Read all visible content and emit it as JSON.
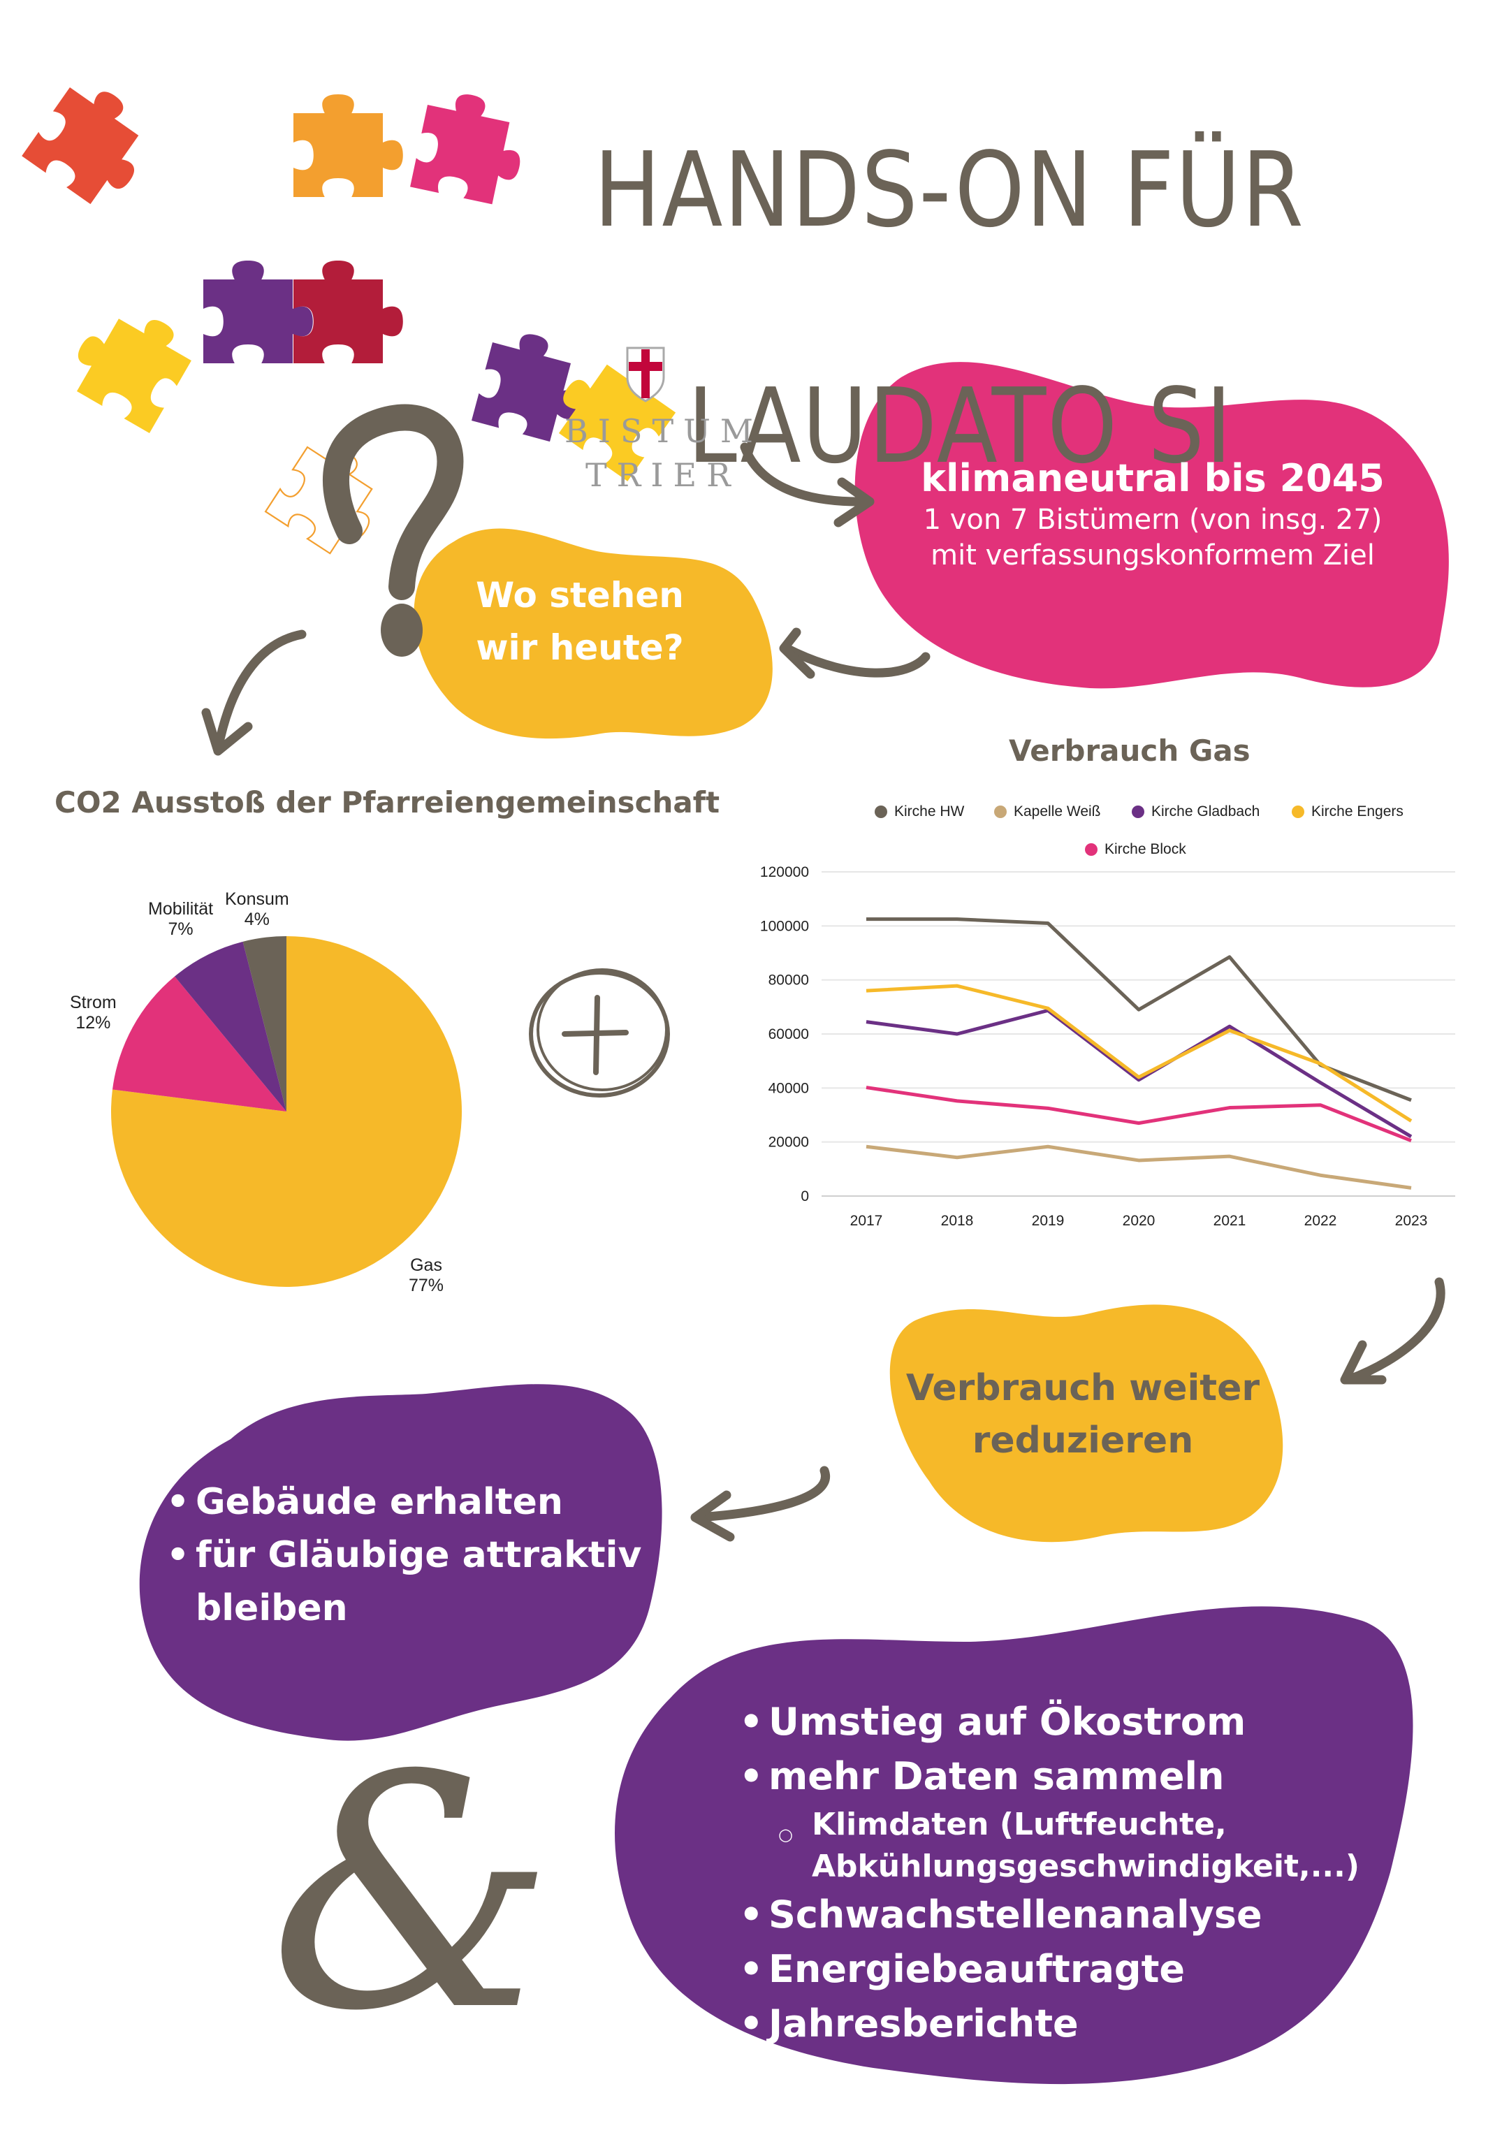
{
  "header": {
    "title_line1": "HANDS-ON FÜR",
    "title_line2": "LAUDATO SI"
  },
  "logo": {
    "line1": "BISTUM",
    "line2": "TRIER"
  },
  "colors": {
    "text_brown": "#6b6357",
    "pink": "#e2327a",
    "yellow": "#f6b929",
    "purple": "#6b3085",
    "orange_red": "#e64d36",
    "orange": "#f39f2f",
    "crimson": "#b31d3a",
    "puzzle_yellow": "#fbcb23",
    "tan": "#c8a877",
    "logo_red": "#c2063b",
    "logo_grey": "#9a9a9a"
  },
  "goal_blob": {
    "headline": "klimaneutral bis 2045",
    "line2": "1 von 7 Bistümern (von insg. 27)",
    "line3": "mit verfassungskonformem Ziel"
  },
  "question_blob": {
    "line1": "Wo stehen",
    "line2": "wir heute?"
  },
  "reduce_blob": {
    "line1": "Verbrauch weiter",
    "line2": "reduzieren"
  },
  "goals_blob": {
    "items": [
      "Gebäude erhalten",
      "für Gläubige attraktiv",
      "bleiben"
    ]
  },
  "measures_blob": {
    "items": [
      {
        "text": "Umstieg auf Ökostrom",
        "level": 1
      },
      {
        "text": "mehr Daten sammeln",
        "level": 1
      },
      {
        "text": "Klimdaten (Luftfeuchte,",
        "level": 2
      },
      {
        "text": "Abkühlungsgeschwindigkeit,...)",
        "level": 2
      },
      {
        "text": "Schwachstellenanalyse",
        "level": 1
      },
      {
        "text": "Energiebeauftragte",
        "level": 1
      },
      {
        "text": "Jahresberichte",
        "level": 1
      }
    ]
  },
  "icons": {
    "question_mark": "question-mark-icon",
    "plus_circle": "plus-circle-icon",
    "ampersand": "ampersand-icon",
    "arrows": [
      "brush-arrow-icon"
    ],
    "puzzle": "puzzle-piece-icon",
    "shield": "shield-cross-icon"
  },
  "chart_data": [
    {
      "type": "pie",
      "title": "CO2 Ausstoß der Pfarreiengemeinschaft",
      "categories": [
        "Gas",
        "Strom",
        "Mobilität",
        "Konsum"
      ],
      "values": [
        77,
        12,
        7,
        4
      ],
      "labels": [
        "77%",
        "12%",
        "7%",
        "4%"
      ],
      "colors": [
        "#f6b929",
        "#e2327a",
        "#6b3085",
        "#6b6357"
      ],
      "legend": "none (inline labels)"
    },
    {
      "type": "line",
      "title": "Verbrauch Gas",
      "x": [
        "2017",
        "2018",
        "2019",
        "2020",
        "2021",
        "2022",
        "2023"
      ],
      "series": [
        {
          "name": "Kirche HW",
          "color": "#6b6357",
          "values": [
            102500,
            102500,
            101000,
            69000,
            88500,
            48500,
            35500
          ]
        },
        {
          "name": "Kapelle Weiß",
          "color": "#c8a877",
          "values": [
            18300,
            14300,
            18300,
            13200,
            14700,
            7700,
            3000
          ]
        },
        {
          "name": "Kirche Gladbach",
          "color": "#6b3085",
          "values": [
            64500,
            60000,
            68700,
            43000,
            62800,
            42000,
            22000
          ]
        },
        {
          "name": "Kirche Engers",
          "color": "#f6b929",
          "values": [
            76000,
            77800,
            69500,
            44000,
            61300,
            49000,
            27800
          ]
        },
        {
          "name": "Kirche Block",
          "color": "#e2327a",
          "values": [
            40200,
            35200,
            32500,
            27000,
            32700,
            33700,
            20500
          ]
        }
      ],
      "yticks": [
        "0",
        "20000",
        "40000",
        "60000",
        "80000",
        "100000",
        "120000"
      ],
      "ylim": [
        0,
        120000
      ],
      "xlabel": "",
      "ylabel": "",
      "grid": true,
      "legend_position": "top"
    }
  ]
}
